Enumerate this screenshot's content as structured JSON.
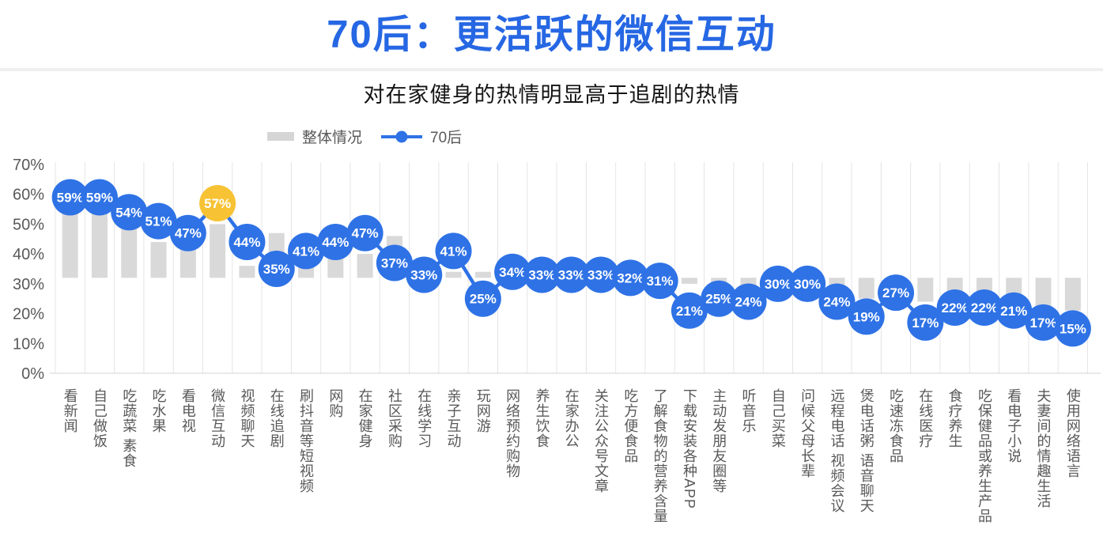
{
  "page": {
    "title": "70后：更活跃的微信互动",
    "subtitle": "对在家健身的热情明显高于追剧的热情"
  },
  "legend": {
    "bar_series_label": "整体情况",
    "line_series_label": "70后"
  },
  "colors": {
    "title_blue": "#2667E3",
    "accent_blue": "#2E72E6",
    "highlight_yellow": "#F7C334",
    "bar_gray": "#D9D9D9",
    "text_gray": "#595959"
  },
  "chart_data": {
    "type": "bar+line combo",
    "title": "70后：更活跃的微信互动",
    "subtitle": "对在家健身的热情明显高于追剧的热情",
    "legend_position": "top-left above plot",
    "grid": "vertical category gridlines only",
    "y_axis": {
      "min": 0,
      "max": 70,
      "tick_step": 10,
      "tick_labels": [
        "0%",
        "10%",
        "20%",
        "30%",
        "40%",
        "50%",
        "60%",
        "70%"
      ],
      "format": "percent",
      "bar_baseline_pct": 32
    },
    "categories": [
      "看新闻",
      "自己做饭",
      "吃蔬菜 素食",
      "吃水果",
      "看电视",
      "微信互动",
      "视频聊天",
      "在线追剧",
      "刷抖音等短视频",
      "网购",
      "在家健身",
      "社区采购",
      "在线学习",
      "亲子互动",
      "玩网游",
      "网络预约购物",
      "养生饮食",
      "在家办公",
      "关注公众号文章",
      "吃方便食品",
      "了解食物的营养含量",
      "下载安装各种APP",
      "主动发朋友圈等",
      "听音乐",
      "自己买菜",
      "问候父母长辈",
      "远程电话 视频会议",
      "煲电话粥 语音聊天",
      "吃速冻食品",
      "在线医疗",
      "食疗养生",
      "吃保健品或养生产品",
      "看电子小说",
      "夫妻间的情趣生活",
      "使用网络语言"
    ],
    "series": [
      {
        "name": "整体情况",
        "type": "bar",
        "color": "#D9D9D9",
        "values_are_estimated_from_pixels": true,
        "values": [
          54,
          54,
          49,
          44,
          44,
          50,
          36,
          47,
          37,
          40,
          40,
          46,
          35,
          34,
          34,
          34,
          33,
          33,
          33,
          33,
          32,
          30,
          30,
          29,
          30,
          29,
          28,
          25,
          26,
          24,
          23,
          23,
          22,
          21,
          21
        ]
      },
      {
        "name": "70后",
        "type": "line",
        "color": "#2E72E6",
        "marker_labels_visible": true,
        "values": [
          59,
          59,
          54,
          51,
          47,
          57,
          44,
          35,
          41,
          44,
          47,
          37,
          33,
          41,
          25,
          34,
          33,
          33,
          33,
          32,
          31,
          21,
          25,
          24,
          30,
          30,
          24,
          19,
          27,
          17,
          22,
          22,
          21,
          17,
          15
        ],
        "highlight": {
          "index": 5,
          "category": "微信互动",
          "value": 57,
          "color": "#F7C334"
        }
      }
    ]
  }
}
